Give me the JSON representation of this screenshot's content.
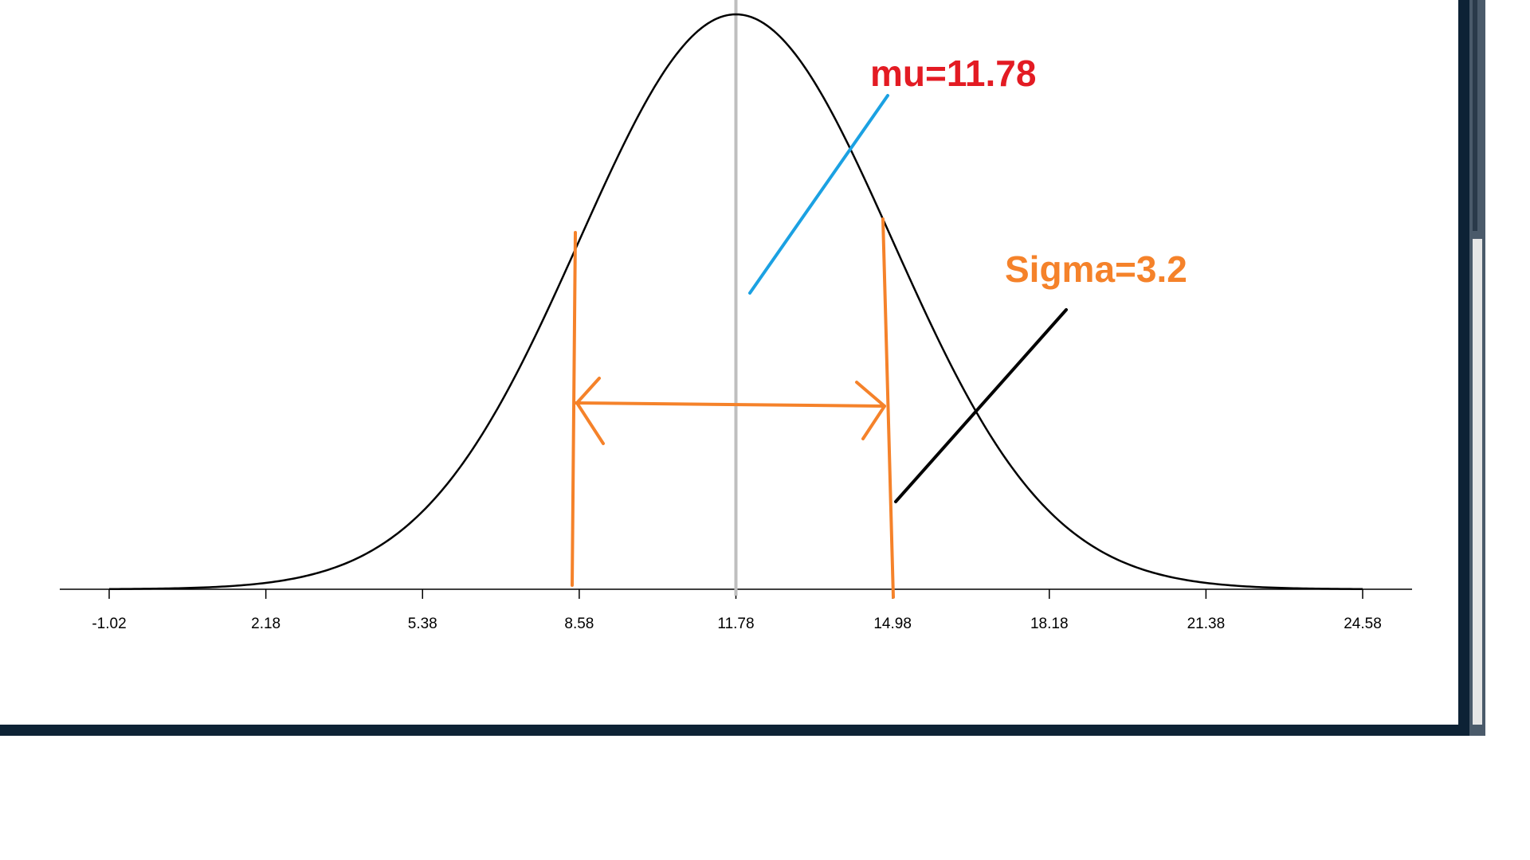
{
  "colors": {
    "curve": "#000000",
    "mean_line": "#bfbfbf",
    "mu_text": "#e31b23",
    "mu_pointer": "#1ba1e2",
    "sigma_text": "#f5822a",
    "sigma_marker": "#f5822a",
    "sigma_pointer": "#000000",
    "window_frame": "#0d2235",
    "scroll_track": "#4a5a6a"
  },
  "chart_data": {
    "type": "line",
    "distribution": "normal",
    "mu": 11.78,
    "sigma": 3.2,
    "x_ticks": [
      "-1.02",
      "2.18",
      "5.38",
      "8.58",
      "11.78",
      "14.98",
      "18.18",
      "21.38",
      "24.58"
    ],
    "xlim": [
      -1.02,
      24.58
    ],
    "title": "",
    "xlabel": "",
    "ylabel": "",
    "grid": false,
    "annotations": {
      "mu_label": "mu=11.78",
      "sigma_label": "Sigma=3.2"
    }
  }
}
